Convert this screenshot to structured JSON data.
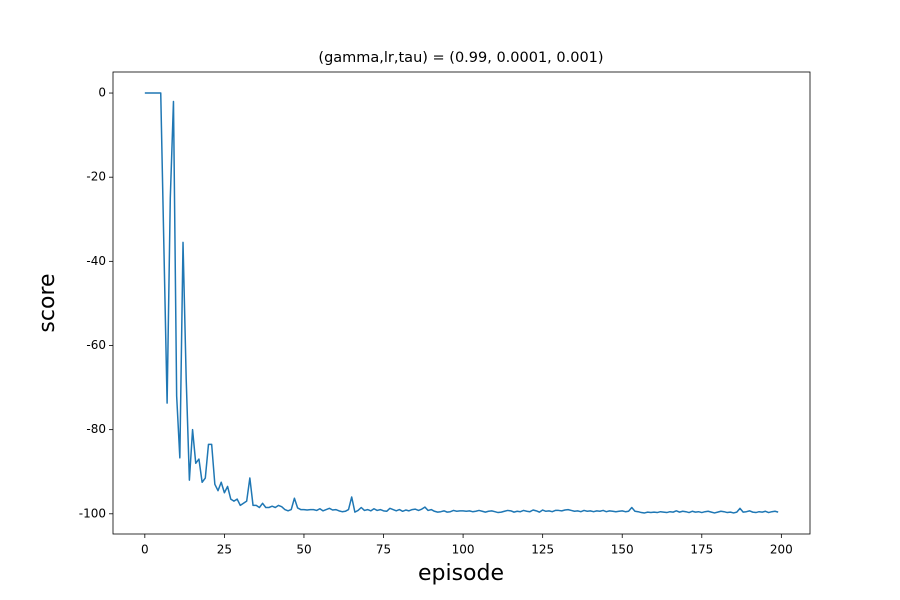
{
  "chart_data": {
    "type": "line",
    "title": "(gamma,lr,tau) = (0.99, 0.0001, 0.001)",
    "x_label": "episode",
    "y_label": "score",
    "x": [
      0,
      1,
      2,
      3,
      4,
      5,
      6,
      7,
      8,
      9,
      10,
      11,
      12,
      13,
      14,
      15,
      16,
      17,
      18,
      19,
      20,
      21,
      22,
      23,
      24,
      25,
      26,
      27,
      28,
      29,
      30,
      31,
      32,
      33,
      34,
      35,
      36,
      37,
      38,
      39,
      40,
      41,
      42,
      43,
      44,
      45,
      46,
      47,
      48,
      49,
      50,
      51,
      52,
      53,
      54,
      55,
      56,
      57,
      58,
      59,
      60,
      61,
      62,
      63,
      64,
      65,
      66,
      67,
      68,
      69,
      70,
      71,
      72,
      73,
      74,
      75,
      76,
      77,
      78,
      79,
      80,
      81,
      82,
      83,
      84,
      85,
      86,
      87,
      88,
      89,
      90,
      91,
      92,
      93,
      94,
      95,
      96,
      97,
      98,
      99,
      100,
      101,
      102,
      103,
      104,
      105,
      106,
      107,
      108,
      109,
      110,
      111,
      112,
      113,
      114,
      115,
      116,
      117,
      118,
      119,
      120,
      121,
      122,
      123,
      124,
      125,
      126,
      127,
      128,
      129,
      130,
      131,
      132,
      133,
      134,
      135,
      136,
      137,
      138,
      139,
      140,
      141,
      142,
      143,
      144,
      145,
      146,
      147,
      148,
      149,
      150,
      151,
      152,
      153,
      154,
      155,
      156,
      157,
      158,
      159,
      160,
      161,
      162,
      163,
      164,
      165,
      166,
      167,
      168,
      169,
      170,
      171,
      172,
      173,
      174,
      175,
      176,
      177,
      178,
      179,
      180,
      181,
      182,
      183,
      184,
      185,
      186,
      187,
      188,
      189,
      190,
      191,
      192,
      193,
      194,
      195,
      196,
      197,
      198,
      199
    ],
    "series": [
      {
        "color": "#1f77b4",
        "values": [
          0,
          0,
          0,
          0,
          0,
          0,
          -37,
          -73.7,
          -25,
          -2,
          -72,
          -86.7,
          -35.5,
          -68,
          -92,
          -80,
          -88,
          -87,
          -92.5,
          -91.5,
          -83.5,
          -83.5,
          -93,
          -94.5,
          -92.5,
          -95,
          -93.5,
          -96.5,
          -97,
          -96.5,
          -98,
          -97.5,
          -97,
          -91.5,
          -98,
          -98,
          -98.5,
          -97.5,
          -98.5,
          -98.5,
          -98.2,
          -98.5,
          -98,
          -98.3,
          -99,
          -99.3,
          -99,
          -96.3,
          -98.6,
          -99,
          -99,
          -99.1,
          -99,
          -99,
          -99.2,
          -98.8,
          -99.3,
          -99,
          -98.7,
          -99.1,
          -99,
          -99.3,
          -99.5,
          -99.4,
          -99,
          -96,
          -99.6,
          -99.2,
          -98.5,
          -99.2,
          -99,
          -99.3,
          -98.8,
          -99.2,
          -99,
          -99.3,
          -99.4,
          -98.7,
          -99,
          -99.3,
          -99,
          -99.4,
          -99.1,
          -99.3,
          -99,
          -98.9,
          -99.2,
          -98.9,
          -98.4,
          -99.2,
          -99,
          -99.4,
          -99.6,
          -99.5,
          -99.3,
          -99.6,
          -99.5,
          -99.2,
          -99.4,
          -99.3,
          -99.3,
          -99.4,
          -99.3,
          -99.5,
          -99.4,
          -99.2,
          -99.4,
          -99.6,
          -99.4,
          -99.3,
          -99.5,
          -99.7,
          -99.6,
          -99.4,
          -99.2,
          -99.3,
          -99.6,
          -99.4,
          -99.5,
          -99.2,
          -99.4,
          -99.5,
          -99.1,
          -99.3,
          -99.6,
          -99.1,
          -99.4,
          -99.3,
          -99.5,
          -99.2,
          -99.2,
          -99.3,
          -99.1,
          -99,
          -99.2,
          -99.4,
          -99.3,
          -99.5,
          -99.2,
          -99.4,
          -99.3,
          -99.5,
          -99.3,
          -99.4,
          -99.2,
          -99.5,
          -99.3,
          -99.4,
          -99.5,
          -99.4,
          -99.3,
          -99.5,
          -99.4,
          -98.5,
          -99.4,
          -99.5,
          -99.7,
          -99.8,
          -99.6,
          -99.7,
          -99.6,
          -99.7,
          -99.5,
          -99.6,
          -99.7,
          -99.5,
          -99.6,
          -99.3,
          -99.6,
          -99.4,
          -99.5,
          -99.7,
          -99.4,
          -99.6,
          -99.5,
          -99.7,
          -99.5,
          -99.4,
          -99.6,
          -99.8,
          -99.6,
          -99.4,
          -99.5,
          -99.7,
          -99.6,
          -99.8,
          -99.6,
          -98.7,
          -99.6,
          -99.5,
          -99.3,
          -99.6,
          -99.7,
          -99.5,
          -99.6,
          -99.4,
          -99.7,
          -99.5,
          -99.4,
          -99.6
        ]
      }
    ],
    "xlim": [
      -10,
      209
    ],
    "ylim": [
      -104.8,
      5
    ],
    "xticks": [
      0,
      25,
      50,
      75,
      100,
      125,
      150,
      175,
      200
    ],
    "yticks": [
      -100,
      -80,
      -60,
      -40,
      -20,
      0
    ]
  }
}
